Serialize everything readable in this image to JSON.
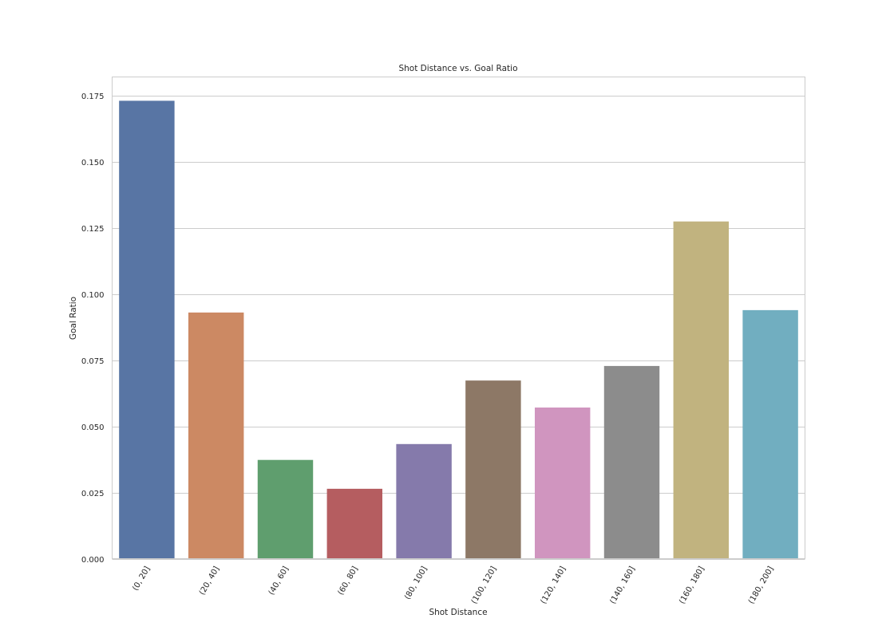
{
  "chart_data": {
    "type": "bar",
    "title": "Shot Distance vs. Goal Ratio",
    "xlabel": "Shot Distance",
    "ylabel": "Goal Ratio",
    "categories": [
      "(0, 20]",
      "(20, 40]",
      "(40, 60]",
      "(60, 80]",
      "(80, 100]",
      "(100, 120]",
      "(120, 140]",
      "(140, 160]",
      "(160, 180]",
      "(180, 200]"
    ],
    "values": [
      0.173,
      0.093,
      0.0373,
      0.0264,
      0.0433,
      0.0673,
      0.0571,
      0.0728,
      0.1274,
      0.0939
    ],
    "ylim": [
      0,
      0.182
    ],
    "yticks": [
      "0.000",
      "0.025",
      "0.050",
      "0.075",
      "0.100",
      "0.125",
      "0.150",
      "0.175"
    ],
    "ytick_values": [
      0,
      0.025,
      0.05,
      0.075,
      0.1,
      0.125,
      0.15,
      0.175
    ],
    "colors": [
      "#5875a4",
      "#cc8963",
      "#5f9e6e",
      "#b55d60",
      "#857aab",
      "#8d7866",
      "#d095bf",
      "#8c8c8c",
      "#c1b37f",
      "#71aec0"
    ],
    "grid": "horizontal"
  }
}
